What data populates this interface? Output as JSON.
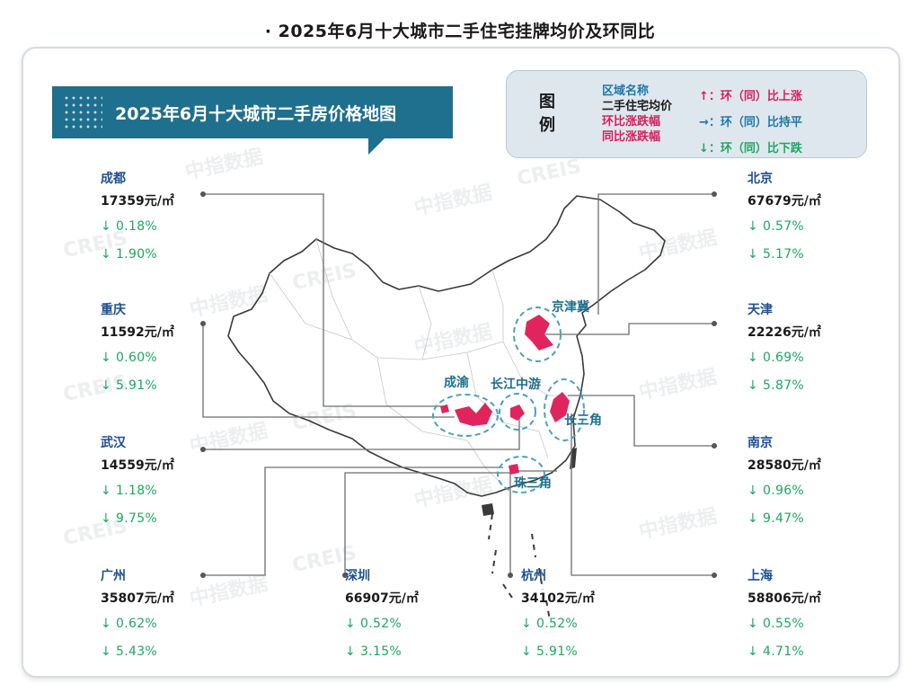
{
  "page_title": "· 2025年6月十大城市二手住宅挂牌均价及环同比",
  "banner_title": "2025年6月十大城市二手房价格地图",
  "legend": {
    "heading": "图例",
    "fields": [
      "区域名称",
      "二手住宅均价",
      "环比涨跌幅",
      "同比涨跌幅"
    ],
    "rules": [
      {
        "symbol": "↑",
        "text": "：环（同）比上涨",
        "color": "#d81e5b"
      },
      {
        "symbol": "→",
        "text": "：环（同）比持平",
        "color": "#1d78a8"
      },
      {
        "symbol": "↓",
        "text": "：环（同）比下跌",
        "color": "#1fa660"
      }
    ]
  },
  "map_regions": [
    "京津冀",
    "成渝",
    "长江中游",
    "长三角",
    "珠三角"
  ],
  "watermark": {
    "cn": "中指数据",
    "en": "CREIS"
  },
  "colors": {
    "region": "#e0245e",
    "province": "#3a3a3a",
    "callout": "#6d6d6d",
    "ring": "#4d9ec0",
    "up": "#d81e5b",
    "flat": "#1d78a8",
    "down": "#1fa660"
  },
  "cities": [
    {
      "name": "成都",
      "price": "17359元/㎡",
      "mom": "0.18%",
      "yoy": "1.90%",
      "mom_dir": "↓",
      "yoy_dir": "↓"
    },
    {
      "name": "重庆",
      "price": "11592元/㎡",
      "mom": "0.60%",
      "yoy": "5.91%",
      "mom_dir": "↓",
      "yoy_dir": "↓"
    },
    {
      "name": "武汉",
      "price": "14559元/㎡",
      "mom": "1.18%",
      "yoy": "9.75%",
      "mom_dir": "↓",
      "yoy_dir": "↓"
    },
    {
      "name": "广州",
      "price": "35807元/㎡",
      "mom": "0.62%",
      "yoy": "5.43%",
      "mom_dir": "↓",
      "yoy_dir": "↓"
    },
    {
      "name": "深圳",
      "price": "66907元/㎡",
      "mom": "0.52%",
      "yoy": "3.15%",
      "mom_dir": "↓",
      "yoy_dir": "↓"
    },
    {
      "name": "杭州",
      "price": "34102元/㎡",
      "mom": "0.52%",
      "yoy": "5.91%",
      "mom_dir": "↓",
      "yoy_dir": "↓"
    },
    {
      "name": "上海",
      "price": "58806元/㎡",
      "mom": "0.55%",
      "yoy": "4.71%",
      "mom_dir": "↓",
      "yoy_dir": "↓"
    },
    {
      "name": "南京",
      "price": "28580元/㎡",
      "mom": "0.96%",
      "yoy": "9.47%",
      "mom_dir": "↓",
      "yoy_dir": "↓"
    },
    {
      "name": "天津",
      "price": "22226元/㎡",
      "mom": "0.69%",
      "yoy": "5.87%",
      "mom_dir": "↓",
      "yoy_dir": "↓"
    },
    {
      "name": "北京",
      "price": "67679元/㎡",
      "mom": "0.57%",
      "yoy": "5.17%",
      "mom_dir": "↓",
      "yoy_dir": "↓"
    }
  ]
}
